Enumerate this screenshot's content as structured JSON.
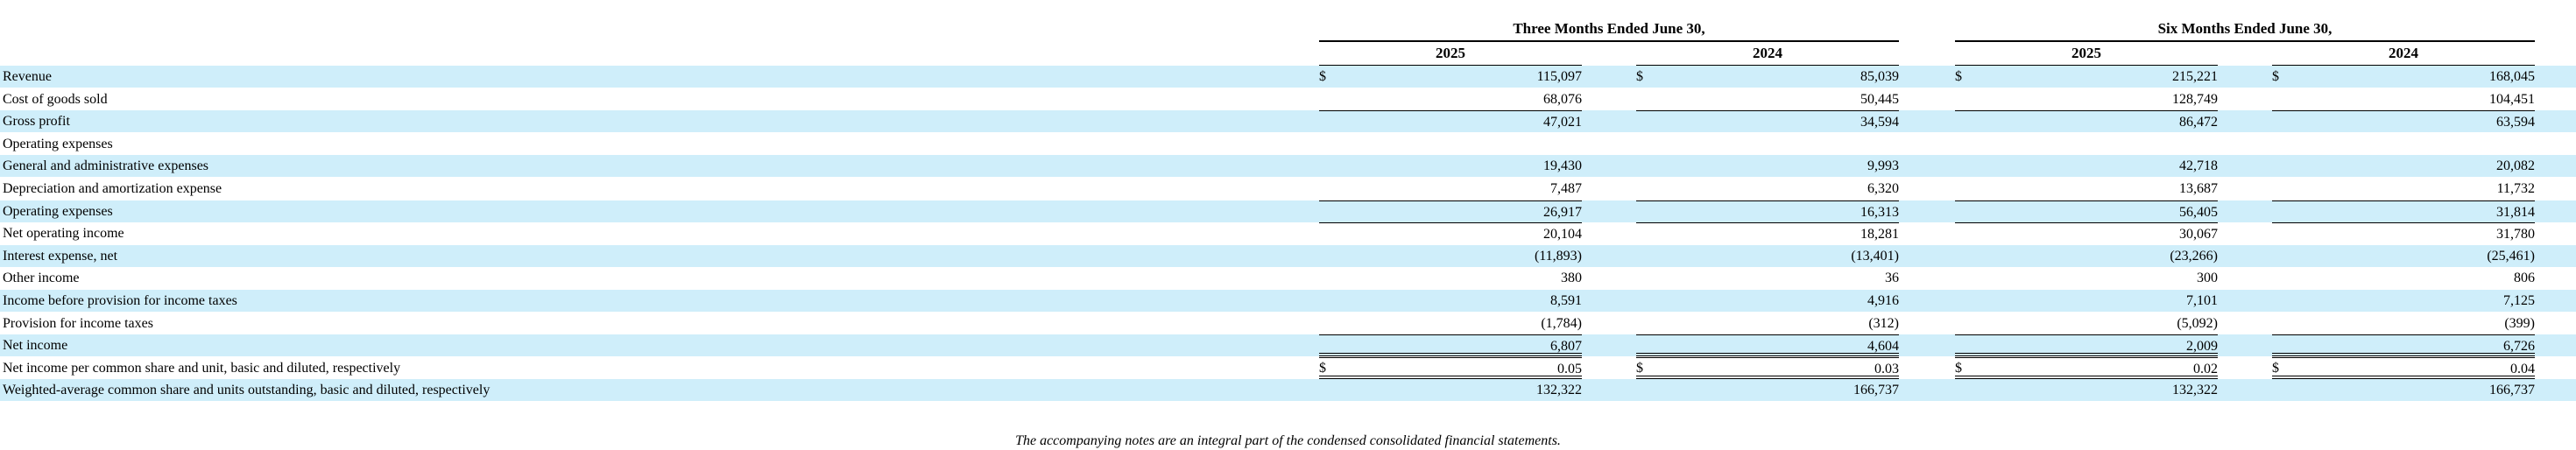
{
  "headers": {
    "three_months": "Three Months Ended June 30,",
    "six_months": "Six Months Ended June 30,",
    "years": [
      "2025",
      "2024",
      "2025",
      "2024"
    ]
  },
  "currency_symbol": "$",
  "rows": [
    {
      "label": "Revenue",
      "values": [
        "115,097",
        "85,039",
        "215,221",
        "168,045"
      ],
      "dollar": true
    },
    {
      "label": "Cost of goods sold",
      "values": [
        "68,076",
        "50,445",
        "128,749",
        "104,451"
      ]
    },
    {
      "label": "Gross profit",
      "values": [
        "47,021",
        "34,594",
        "86,472",
        "63,594"
      ]
    },
    {
      "label": "Operating expenses",
      "values": [
        "",
        "",
        "",
        ""
      ]
    },
    {
      "label": "General and administrative expenses",
      "values": [
        "19,430",
        "9,993",
        "42,718",
        "20,082"
      ]
    },
    {
      "label": "Depreciation and amortization expense",
      "values": [
        "7,487",
        "6,320",
        "13,687",
        "11,732"
      ]
    },
    {
      "label": "Operating expenses",
      "values": [
        "26,917",
        "16,313",
        "56,405",
        "31,814"
      ]
    },
    {
      "label": "Net operating income",
      "values": [
        "20,104",
        "18,281",
        "30,067",
        "31,780"
      ]
    },
    {
      "label": "Interest expense, net",
      "values": [
        "(11,893)",
        "(13,401)",
        "(23,266)",
        "(25,461)"
      ]
    },
    {
      "label": "Other income",
      "values": [
        "380",
        "36",
        "300",
        "806"
      ]
    },
    {
      "label": "Income before provision for income taxes",
      "values": [
        "8,591",
        "4,916",
        "7,101",
        "7,125"
      ]
    },
    {
      "label": "Provision for income taxes",
      "values": [
        "(1,784)",
        "(312)",
        "(5,092)",
        "(399)"
      ]
    },
    {
      "label": "Net income",
      "values": [
        "6,807",
        "4,604",
        "2,009",
        "6,726"
      ]
    },
    {
      "label": "Net income per common share and unit, basic and diluted, respectively",
      "values": [
        "0.05",
        "0.03",
        "0.02",
        "0.04"
      ],
      "dollar": true
    },
    {
      "label": "Weighted-average common share and units outstanding, basic and diluted, respectively",
      "values": [
        "132,322",
        "166,737",
        "132,322",
        "166,737"
      ]
    }
  ],
  "footnote": "The accompanying notes are an integral part of the condensed consolidated financial statements."
}
